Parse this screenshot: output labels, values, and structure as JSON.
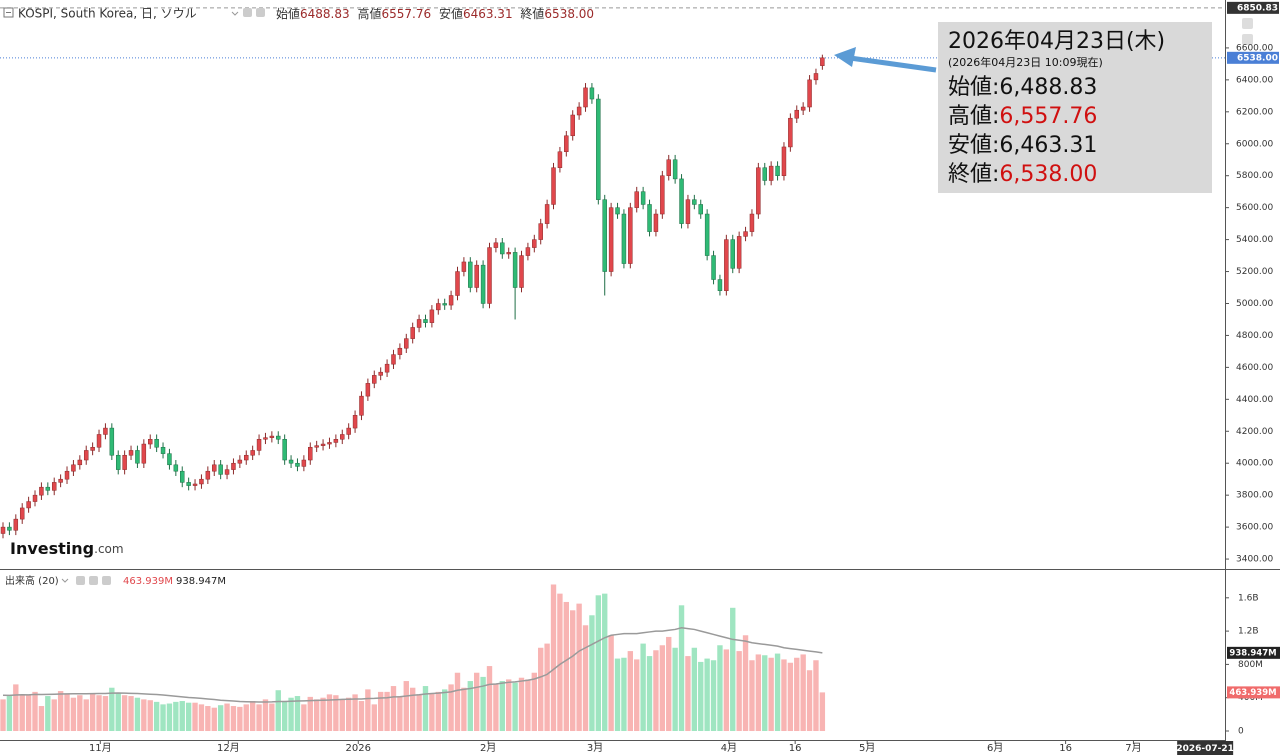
{
  "chart_data": {
    "type": "candlestick",
    "symbol": "KOSPI, South Korea, 日, ソウル",
    "legend": [
      {
        "label": "始値",
        "value": "6488.83"
      },
      {
        "label": "高値",
        "value": "6557.76"
      },
      {
        "label": "安値",
        "value": "6463.31"
      },
      {
        "label": "終値",
        "value": "6538.00"
      }
    ],
    "open": [
      3560,
      3600,
      3580,
      3650,
      3720,
      3760,
      3800,
      3850,
      3830,
      3880,
      3900,
      3950,
      3990,
      4020,
      4080,
      4100,
      4180,
      4220,
      4050,
      3960,
      4050,
      4080,
      4000,
      4120,
      4150,
      4100,
      4060,
      3990,
      3950,
      3880,
      3860,
      3870,
      3900,
      3950,
      3990,
      3930,
      3960,
      4000,
      4020,
      4050,
      4080,
      4150,
      4160,
      4170,
      4150,
      4020,
      4000,
      3980,
      4020,
      4100,
      4110,
      4120,
      4130,
      4150,
      4180,
      4220,
      4300,
      4420,
      4500,
      4550,
      4570,
      4620,
      4680,
      4720,
      4780,
      4850,
      4900,
      4880,
      4960,
      5000,
      4990,
      5050,
      5200,
      5260,
      5100,
      5240,
      5000,
      5350,
      5380,
      5310,
      5320,
      5100,
      5300,
      5350,
      5400,
      5500,
      5620,
      5850,
      5950,
      6050,
      6180,
      6230,
      6350,
      6280,
      5650,
      5200,
      5600,
      5560,
      5250,
      5600,
      5700,
      5620,
      5450,
      5560,
      5800,
      5900,
      5780,
      5500,
      5650,
      5620,
      5560,
      5300,
      5150,
      5080,
      5400,
      5220,
      5420,
      5450,
      5560,
      5850,
      5770,
      5860,
      5800,
      5980,
      6160,
      6210,
      6230,
      6400,
      6488.83
    ],
    "high": [
      3630,
      3630,
      3680,
      3750,
      3790,
      3830,
      3880,
      3880,
      3910,
      3930,
      3980,
      4020,
      4050,
      4110,
      4130,
      4210,
      4250,
      4250,
      4080,
      4080,
      4110,
      4110,
      4150,
      4180,
      4180,
      4130,
      4090,
      4020,
      3980,
      3910,
      3900,
      3930,
      3980,
      4020,
      4020,
      3990,
      4030,
      4050,
      4080,
      4110,
      4180,
      4190,
      4200,
      4200,
      4180,
      4050,
      4030,
      4050,
      4130,
      4140,
      4150,
      4160,
      4180,
      4210,
      4250,
      4330,
      4450,
      4530,
      4580,
      4600,
      4650,
      4710,
      4750,
      4810,
      4880,
      4930,
      4930,
      4990,
      5030,
      5030,
      5080,
      5230,
      5290,
      5290,
      5270,
      5270,
      5380,
      5410,
      5410,
      5350,
      5350,
      5330,
      5380,
      5430,
      5530,
      5650,
      5880,
      5980,
      6080,
      6210,
      6260,
      6380,
      6380,
      6310,
      5680,
      5630,
      5630,
      5590,
      5630,
      5730,
      5730,
      5650,
      5590,
      5830,
      5930,
      5930,
      5810,
      5680,
      5680,
      5650,
      5590,
      5330,
      5180,
      5430,
      5430,
      5450,
      5480,
      5590,
      5880,
      5880,
      5890,
      5890,
      6010,
      6190,
      6240,
      6260,
      6430,
      6470,
      6557.76
    ],
    "low": [
      3530,
      3550,
      3550,
      3620,
      3690,
      3730,
      3770,
      3800,
      3800,
      3850,
      3870,
      3920,
      3960,
      3990,
      4050,
      4070,
      4150,
      4020,
      3930,
      3930,
      4020,
      3970,
      3970,
      4090,
      4070,
      4030,
      3960,
      3920,
      3850,
      3830,
      3830,
      3840,
      3870,
      3920,
      3900,
      3900,
      3930,
      3970,
      3990,
      4020,
      4050,
      4120,
      4130,
      4120,
      3990,
      3970,
      3950,
      3950,
      3990,
      4070,
      4080,
      4090,
      4100,
      4120,
      4150,
      4190,
      4270,
      4390,
      4470,
      4520,
      4540,
      4590,
      4650,
      4690,
      4750,
      4820,
      4850,
      4850,
      4930,
      4960,
      4960,
      5020,
      5170,
      5070,
      5070,
      4970,
      4970,
      5320,
      5280,
      5280,
      4900,
      5070,
      5270,
      5320,
      5370,
      5470,
      5590,
      5820,
      5920,
      6020,
      6150,
      6200,
      6250,
      5620,
      5050,
      5170,
      5530,
      5220,
      5220,
      5570,
      5590,
      5420,
      5420,
      5530,
      5770,
      5750,
      5470,
      5470,
      5590,
      5530,
      5270,
      5120,
      5050,
      5050,
      5190,
      5190,
      5390,
      5420,
      5530,
      5740,
      5740,
      5770,
      5770,
      5950,
      6130,
      6180,
      6200,
      6370,
      6463.31
    ],
    "close": [
      3600,
      3580,
      3650,
      3720,
      3760,
      3800,
      3850,
      3830,
      3880,
      3900,
      3950,
      3990,
      4020,
      4080,
      4100,
      4180,
      4220,
      4050,
      3960,
      4050,
      4080,
      4000,
      4120,
      4150,
      4100,
      4060,
      3990,
      3950,
      3880,
      3860,
      3870,
      3900,
      3950,
      3990,
      3930,
      3960,
      4000,
      4020,
      4050,
      4080,
      4150,
      4160,
      4170,
      4150,
      4020,
      4000,
      3980,
      4020,
      4100,
      4110,
      4120,
      4130,
      4150,
      4180,
      4220,
      4300,
      4420,
      4500,
      4550,
      4570,
      4620,
      4680,
      4720,
      4780,
      4850,
      4900,
      4880,
      4960,
      5000,
      4990,
      5050,
      5200,
      5260,
      5100,
      5240,
      5000,
      5350,
      5380,
      5310,
      5320,
      5100,
      5300,
      5350,
      5400,
      5500,
      5620,
      5850,
      5950,
      6050,
      6180,
      6230,
      6350,
      6280,
      5650,
      5200,
      5600,
      5560,
      5250,
      5600,
      5700,
      5620,
      5450,
      5560,
      5800,
      5900,
      5780,
      5500,
      5650,
      5620,
      5560,
      5300,
      5150,
      5080,
      5400,
      5220,
      5420,
      5450,
      5560,
      5850,
      5770,
      5860,
      5800,
      5980,
      6160,
      6210,
      6230,
      6400,
      6440,
      6538
    ],
    "up_color": "#e0474c",
    "down_color": "#2fba75",
    "ylim": [
      3344,
      6900
    ],
    "yticks": [
      {
        "value": 3400,
        "label": "3400.00"
      },
      {
        "value": 3600,
        "label": "3600.00"
      },
      {
        "value": 3800,
        "label": "3800.00"
      },
      {
        "value": 4000,
        "label": "4000.00"
      },
      {
        "value": 4200,
        "label": "4200.00"
      },
      {
        "value": 4400,
        "label": "4400.00"
      },
      {
        "value": 4600,
        "label": "4600.00"
      },
      {
        "value": 4800,
        "label": "4800.00"
      },
      {
        "value": 5000,
        "label": "5000.00"
      },
      {
        "value": 5200,
        "label": "5200.00"
      },
      {
        "value": 5400,
        "label": "5400.00"
      },
      {
        "value": 5600,
        "label": "5600.00"
      },
      {
        "value": 5800,
        "label": "5800.00"
      },
      {
        "value": 6000,
        "label": "6000.00"
      },
      {
        "value": 6200,
        "label": "6200.00"
      },
      {
        "value": 6400,
        "label": "6400.00"
      },
      {
        "value": 6600,
        "label": "6600.00"
      }
    ],
    "xlim": [
      -0.47,
      190.9
    ],
    "xticks": [
      {
        "value": 15.2,
        "label": "11月"
      },
      {
        "value": 35.2,
        "label": "12月"
      },
      {
        "value": 55.5,
        "label": "2026"
      },
      {
        "value": 75.8,
        "label": "2月"
      },
      {
        "value": 92.5,
        "label": "3月"
      },
      {
        "value": 113.4,
        "label": "4月"
      },
      {
        "value": 123.75,
        "label": "16"
      },
      {
        "value": 135,
        "label": "5月"
      },
      {
        "value": 155,
        "label": "6月"
      },
      {
        "value": 166,
        "label": "16"
      },
      {
        "value": 176.6,
        "label": "7月"
      }
    ],
    "cursor_x": {
      "value": 187.8,
      "label": "2026-07-21"
    },
    "range_high": {
      "value": 6850.83,
      "label": "6850.83"
    },
    "last": {
      "value": 6538,
      "label": "6538.00"
    },
    "last_color": "#4a7fd6",
    "grid": false,
    "watermark": {
      "brand": "Investing",
      "suffix": ".com"
    },
    "tooltip": {
      "date": "2026年04月23日(木)",
      "asof": "(2026年04月23日 10:09現在)",
      "rows": [
        {
          "label": "始値:",
          "value": "6,488.83",
          "color": "#111111"
        },
        {
          "label": "高値:",
          "value": "6,557.76",
          "color": "#d01010"
        },
        {
          "label": "安値:",
          "value": "6,463.31",
          "color": "#111111"
        },
        {
          "label": "終値:",
          "value": "6,538.00",
          "color": "#d01010"
        }
      ]
    },
    "volume": {
      "title": "出来高 (20)",
      "values": [
        380,
        420,
        560,
        440,
        430,
        470,
        300,
        420,
        380,
        480,
        440,
        400,
        430,
        380,
        450,
        430,
        420,
        520,
        460,
        430,
        420,
        400,
        380,
        370,
        350,
        320,
        330,
        350,
        360,
        340,
        340,
        320,
        300,
        280,
        310,
        330,
        300,
        290,
        320,
        360,
        320,
        380,
        330,
        490,
        350,
        400,
        420,
        320,
        410,
        380,
        400,
        440,
        430,
        380,
        400,
        440,
        360,
        500,
        320,
        470,
        470,
        540,
        420,
        600,
        520,
        440,
        540,
        450,
        470,
        500,
        560,
        700,
        520,
        600,
        700,
        650,
        780,
        560,
        600,
        620,
        580,
        640,
        620,
        700,
        1000,
        1050,
        1760,
        1650,
        1550,
        1450,
        1530,
        1270,
        1390,
        1630,
        1650,
        1150,
        870,
        880,
        960,
        860,
        1050,
        900,
        970,
        1030,
        1130,
        1000,
        1510,
        900,
        1000,
        830,
        870,
        850,
        1030,
        980,
        1480,
        960,
        1150,
        850,
        920,
        910,
        880,
        930,
        860,
        820,
        880,
        920,
        730,
        850,
        463.939
      ],
      "value_label": "463.939M",
      "ma": [
        430,
        428,
        432,
        435,
        434,
        440,
        438,
        440,
        442,
        445,
        446,
        447,
        448,
        447,
        449,
        450,
        450,
        455,
        456,
        455,
        452,
        450,
        446,
        442,
        438,
        432,
        425,
        418,
        410,
        403,
        398,
        392,
        385,
        378,
        370,
        365,
        360,
        355,
        352,
        350,
        348,
        348,
        350,
        355,
        355,
        358,
        360,
        362,
        365,
        368,
        370,
        372,
        376,
        380,
        382,
        385,
        385,
        390,
        392,
        396,
        400,
        410,
        412,
        420,
        430,
        436,
        445,
        450,
        455,
        462,
        470,
        490,
        500,
        510,
        525,
        540,
        560,
        565,
        575,
        585,
        590,
        600,
        610,
        625,
        650,
        680,
        740,
        800,
        850,
        900,
        960,
        1000,
        1040,
        1080,
        1120,
        1150,
        1160,
        1170,
        1170,
        1170,
        1180,
        1190,
        1200,
        1200,
        1210,
        1220,
        1240,
        1230,
        1220,
        1200,
        1180,
        1160,
        1140,
        1120,
        1100,
        1090,
        1080,
        1060,
        1050,
        1040,
        1030,
        1020,
        1000,
        990,
        980,
        970,
        960,
        950,
        938.947
      ],
      "ma_label": "938.947M",
      "up_color": "#f8b4b3",
      "down_color": "#9fe5c1",
      "ma_color": "#9a9a9a",
      "ylim": [
        -108,
        1934
      ],
      "yticks": [
        0,
        {
          "value": 400,
          "label": "400M"
        },
        {
          "value": 800,
          "label": "800M"
        },
        {
          "value": 1200,
          "label": "1.2B"
        },
        {
          "value": 1600,
          "label": "1.6B"
        }
      ]
    }
  }
}
